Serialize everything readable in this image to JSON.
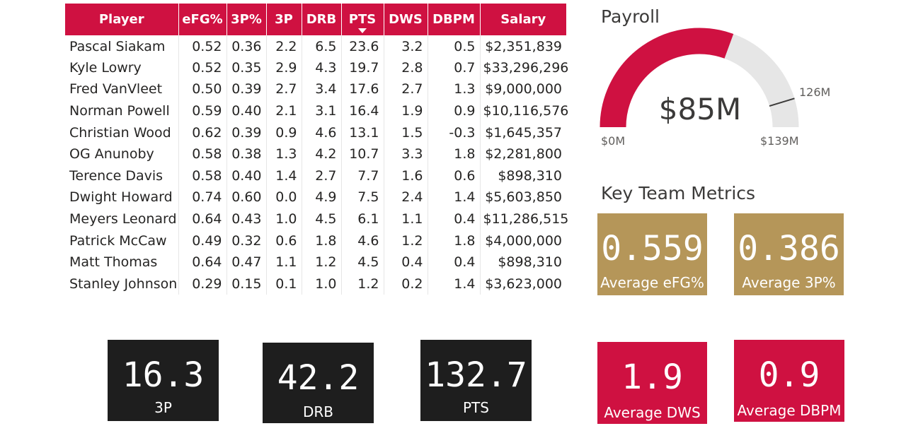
{
  "table": {
    "headers": [
      "Player",
      "eFG%",
      "3P%",
      "3P",
      "DRB",
      "PTS",
      "DWS",
      "DBPM",
      "Salary"
    ],
    "rows": [
      [
        "Pascal Siakam",
        "0.52",
        "0.36",
        "2.2",
        "6.5",
        "23.6",
        "3.2",
        "0.5",
        "$2,351,839"
      ],
      [
        "Kyle Lowry",
        "0.52",
        "0.35",
        "2.9",
        "4.3",
        "19.7",
        "2.8",
        "0.7",
        "$33,296,296"
      ],
      [
        "Fred VanVleet",
        "0.50",
        "0.39",
        "2.7",
        "3.4",
        "17.6",
        "2.7",
        "1.3",
        "$9,000,000"
      ],
      [
        "Norman Powell",
        "0.59",
        "0.40",
        "2.1",
        "3.1",
        "16.4",
        "1.9",
        "0.9",
        "$10,116,576"
      ],
      [
        "Christian Wood",
        "0.62",
        "0.39",
        "0.9",
        "4.6",
        "13.1",
        "1.5",
        "-0.3",
        "$1,645,357"
      ],
      [
        "OG Anunoby",
        "0.58",
        "0.38",
        "1.3",
        "4.2",
        "10.7",
        "3.3",
        "1.8",
        "$2,281,800"
      ],
      [
        "Terence Davis",
        "0.58",
        "0.40",
        "1.4",
        "2.7",
        "7.7",
        "1.6",
        "0.6",
        "$898,310"
      ],
      [
        "Dwight Howard",
        "0.74",
        "0.60",
        "0.0",
        "4.9",
        "7.5",
        "2.4",
        "1.4",
        "$5,603,850"
      ],
      [
        "Meyers Leonard",
        "0.64",
        "0.43",
        "1.0",
        "4.5",
        "6.1",
        "1.1",
        "0.4",
        "$11,286,515"
      ],
      [
        "Patrick McCaw",
        "0.49",
        "0.32",
        "0.6",
        "1.8",
        "4.6",
        "1.2",
        "1.8",
        "$4,000,000"
      ],
      [
        "Matt Thomas",
        "0.64",
        "0.47",
        "1.1",
        "1.2",
        "4.5",
        "0.4",
        "0.4",
        "$898,310"
      ],
      [
        "Stanley Johnson",
        "0.29",
        "0.15",
        "0.1",
        "1.0",
        "1.2",
        "0.2",
        "1.4",
        "$3,623,000"
      ]
    ]
  },
  "gauge": {
    "title": "Payroll",
    "value_label": "$85M",
    "min_label": "$0M",
    "max_label": "$139M",
    "target_label": "126M",
    "value": 85,
    "min": 0,
    "max": 139,
    "target": 126,
    "fill_color": "#cf1141",
    "track_color": "#e6e6e6"
  },
  "key_metrics": {
    "title": "Key Team Metrics"
  },
  "cards": {
    "efg": {
      "value": "0.559",
      "label": "Average eFG%"
    },
    "p3pct": {
      "value": "0.386",
      "label": "Average 3P%"
    },
    "dws": {
      "value": "1.9",
      "label": "Average DWS"
    },
    "dbpm": {
      "value": "0.9",
      "label": "Average DBPM"
    },
    "p3": {
      "value": "16.3",
      "label": "3P"
    },
    "drb": {
      "value": "42.2",
      "label": "DRB"
    },
    "pts": {
      "value": "132.7",
      "label": "PTS"
    }
  },
  "colors": {
    "accent_red": "#cf1141",
    "gold": "#b59659",
    "dark": "#1e1e1e"
  }
}
